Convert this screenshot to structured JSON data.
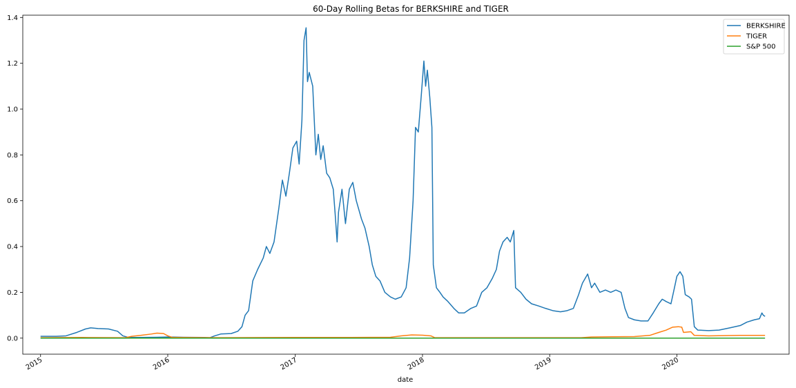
{
  "chart_data": {
    "type": "line",
    "title": "60-Day Rolling Betas for BERKSHIRE and TIGER",
    "xlabel": "date",
    "ylabel": "",
    "xlim": [
      "2014-11-11",
      "2020-11-18"
    ],
    "ylim": [
      -0.07,
      1.41
    ],
    "y_ticks": [
      0.0,
      0.2,
      0.4,
      0.6,
      0.8,
      1.0,
      1.2,
      1.4
    ],
    "y_tick_labels": [
      "0.0",
      "0.2",
      "0.4",
      "0.6",
      "0.8",
      "1.0",
      "1.2",
      "1.4"
    ],
    "x_ticks": [
      "2015-01-01",
      "2016-01-01",
      "2017-01-01",
      "2018-01-01",
      "2019-01-01",
      "2020-01-01"
    ],
    "x_tick_labels": [
      "2015",
      "2016",
      "2017",
      "2018",
      "2019",
      "2020"
    ],
    "grid": false,
    "legend_position": "top-right",
    "series": [
      {
        "name": "BERKSHIRE",
        "color": "#1f77b4",
        "points": [
          [
            "2015-01-01",
            0.008
          ],
          [
            "2015-02-15",
            0.008
          ],
          [
            "2015-03-15",
            0.01
          ],
          [
            "2015-04-15",
            0.025
          ],
          [
            "2015-05-10",
            0.04
          ],
          [
            "2015-05-25",
            0.045
          ],
          [
            "2015-06-15",
            0.042
          ],
          [
            "2015-07-15",
            0.04
          ],
          [
            "2015-08-10",
            0.03
          ],
          [
            "2015-08-25",
            0.01
          ],
          [
            "2015-09-10",
            0.003
          ],
          [
            "2015-10-15",
            0.003
          ],
          [
            "2015-12-01",
            0.004
          ],
          [
            "2016-01-01",
            0.005
          ],
          [
            "2016-02-15",
            0.004
          ],
          [
            "2016-04-15",
            0.003
          ],
          [
            "2016-05-01",
            0.002
          ],
          [
            "2016-05-15",
            0.01
          ],
          [
            "2016-06-01",
            0.018
          ],
          [
            "2016-07-01",
            0.02
          ],
          [
            "2016-07-20",
            0.03
          ],
          [
            "2016-08-01",
            0.05
          ],
          [
            "2016-08-10",
            0.1
          ],
          [
            "2016-08-20",
            0.12
          ],
          [
            "2016-09-01",
            0.25
          ],
          [
            "2016-09-15",
            0.3
          ],
          [
            "2016-10-01",
            0.35
          ],
          [
            "2016-10-10",
            0.4
          ],
          [
            "2016-10-20",
            0.37
          ],
          [
            "2016-11-01",
            0.42
          ],
          [
            "2016-11-15",
            0.57
          ],
          [
            "2016-11-25",
            0.69
          ],
          [
            "2016-12-05",
            0.62
          ],
          [
            "2016-12-15",
            0.72
          ],
          [
            "2016-12-25",
            0.83
          ],
          [
            "2017-01-05",
            0.86
          ],
          [
            "2017-01-12",
            0.76
          ],
          [
            "2017-01-20",
            0.95
          ],
          [
            "2017-01-26",
            1.3
          ],
          [
            "2017-02-01",
            1.355
          ],
          [
            "2017-02-05",
            1.12
          ],
          [
            "2017-02-10",
            1.16
          ],
          [
            "2017-02-20",
            1.1
          ],
          [
            "2017-03-01",
            0.8
          ],
          [
            "2017-03-08",
            0.89
          ],
          [
            "2017-03-15",
            0.78
          ],
          [
            "2017-03-22",
            0.84
          ],
          [
            "2017-04-01",
            0.72
          ],
          [
            "2017-04-10",
            0.7
          ],
          [
            "2017-04-20",
            0.65
          ],
          [
            "2017-04-25",
            0.55
          ],
          [
            "2017-05-01",
            0.42
          ],
          [
            "2017-05-05",
            0.55
          ],
          [
            "2017-05-15",
            0.65
          ],
          [
            "2017-05-25",
            0.5
          ],
          [
            "2017-06-05",
            0.65
          ],
          [
            "2017-06-15",
            0.68
          ],
          [
            "2017-06-25",
            0.6
          ],
          [
            "2017-07-10",
            0.52
          ],
          [
            "2017-07-20",
            0.48
          ],
          [
            "2017-08-01",
            0.4
          ],
          [
            "2017-08-10",
            0.32
          ],
          [
            "2017-08-20",
            0.27
          ],
          [
            "2017-09-01",
            0.25
          ],
          [
            "2017-09-15",
            0.2
          ],
          [
            "2017-10-01",
            0.18
          ],
          [
            "2017-10-15",
            0.17
          ],
          [
            "2017-11-01",
            0.18
          ],
          [
            "2017-11-15",
            0.22
          ],
          [
            "2017-11-25",
            0.35
          ],
          [
            "2017-12-05",
            0.6
          ],
          [
            "2017-12-12",
            0.92
          ],
          [
            "2017-12-20",
            0.9
          ],
          [
            "2017-12-28",
            1.05
          ],
          [
            "2018-01-05",
            1.21
          ],
          [
            "2018-01-10",
            1.1
          ],
          [
            "2018-01-15",
            1.17
          ],
          [
            "2018-01-22",
            1.05
          ],
          [
            "2018-01-28",
            0.92
          ],
          [
            "2018-02-01",
            0.32
          ],
          [
            "2018-02-10",
            0.22
          ],
          [
            "2018-02-20",
            0.2
          ],
          [
            "2018-03-01",
            0.18
          ],
          [
            "2018-03-15",
            0.16
          ],
          [
            "2018-04-01",
            0.13
          ],
          [
            "2018-04-15",
            0.11
          ],
          [
            "2018-05-01",
            0.11
          ],
          [
            "2018-05-20",
            0.13
          ],
          [
            "2018-06-05",
            0.14
          ],
          [
            "2018-06-20",
            0.2
          ],
          [
            "2018-07-05",
            0.22
          ],
          [
            "2018-07-20",
            0.26
          ],
          [
            "2018-08-01",
            0.3
          ],
          [
            "2018-08-10",
            0.38
          ],
          [
            "2018-08-20",
            0.42
          ],
          [
            "2018-09-01",
            0.44
          ],
          [
            "2018-09-10",
            0.42
          ],
          [
            "2018-09-20",
            0.47
          ],
          [
            "2018-09-25",
            0.22
          ],
          [
            "2018-10-10",
            0.2
          ],
          [
            "2018-10-25",
            0.17
          ],
          [
            "2018-11-10",
            0.15
          ],
          [
            "2018-12-01",
            0.14
          ],
          [
            "2018-12-20",
            0.13
          ],
          [
            "2019-01-10",
            0.12
          ],
          [
            "2019-02-01",
            0.115
          ],
          [
            "2019-02-20",
            0.12
          ],
          [
            "2019-03-10",
            0.13
          ],
          [
            "2019-03-25",
            0.19
          ],
          [
            "2019-04-05",
            0.24
          ],
          [
            "2019-04-20",
            0.28
          ],
          [
            "2019-05-01",
            0.22
          ],
          [
            "2019-05-10",
            0.24
          ],
          [
            "2019-05-25",
            0.2
          ],
          [
            "2019-06-10",
            0.21
          ],
          [
            "2019-06-25",
            0.2
          ],
          [
            "2019-07-10",
            0.21
          ],
          [
            "2019-07-25",
            0.2
          ],
          [
            "2019-08-05",
            0.13
          ],
          [
            "2019-08-15",
            0.09
          ],
          [
            "2019-09-01",
            0.08
          ],
          [
            "2019-09-20",
            0.075
          ],
          [
            "2019-10-10",
            0.075
          ],
          [
            "2019-10-25",
            0.11
          ],
          [
            "2019-11-10",
            0.15
          ],
          [
            "2019-11-20",
            0.17
          ],
          [
            "2019-12-01",
            0.16
          ],
          [
            "2019-12-15",
            0.15
          ],
          [
            "2019-12-25",
            0.22
          ],
          [
            "2020-01-01",
            0.27
          ],
          [
            "2020-01-10",
            0.29
          ],
          [
            "2020-01-18",
            0.27
          ],
          [
            "2020-01-25",
            0.19
          ],
          [
            "2020-02-05",
            0.18
          ],
          [
            "2020-02-12",
            0.17
          ],
          [
            "2020-02-20",
            0.05
          ],
          [
            "2020-03-01",
            0.035
          ],
          [
            "2020-04-01",
            0.033
          ],
          [
            "2020-05-01",
            0.035
          ],
          [
            "2020-06-01",
            0.045
          ],
          [
            "2020-07-01",
            0.055
          ],
          [
            "2020-07-20",
            0.07
          ],
          [
            "2020-08-10",
            0.08
          ],
          [
            "2020-08-25",
            0.085
          ],
          [
            "2020-09-01",
            0.11
          ],
          [
            "2020-09-05",
            0.1
          ],
          [
            "2020-09-10",
            0.095
          ]
        ]
      },
      {
        "name": "TIGER",
        "color": "#ff7f0e",
        "points": [
          [
            "2015-01-01",
            0.002
          ],
          [
            "2015-05-01",
            0.003
          ],
          [
            "2015-09-01",
            0.002
          ],
          [
            "2015-09-20",
            0.008
          ],
          [
            "2015-10-15",
            0.012
          ],
          [
            "2015-11-15",
            0.018
          ],
          [
            "2015-12-01",
            0.022
          ],
          [
            "2015-12-20",
            0.02
          ],
          [
            "2016-01-01",
            0.01
          ],
          [
            "2016-01-15",
            0.003
          ],
          [
            "2016-06-01",
            0.002
          ],
          [
            "2017-01-01",
            0.003
          ],
          [
            "2017-06-01",
            0.003
          ],
          [
            "2017-10-01",
            0.004
          ],
          [
            "2017-11-01",
            0.01
          ],
          [
            "2017-12-01",
            0.014
          ],
          [
            "2018-01-01",
            0.013
          ],
          [
            "2018-01-25",
            0.01
          ],
          [
            "2018-02-05",
            0.002
          ],
          [
            "2018-07-01",
            0.002
          ],
          [
            "2019-01-01",
            0.002
          ],
          [
            "2019-04-01",
            0.002
          ],
          [
            "2019-05-01",
            0.005
          ],
          [
            "2019-07-01",
            0.006
          ],
          [
            "2019-09-01",
            0.007
          ],
          [
            "2019-10-15",
            0.012
          ],
          [
            "2019-11-10",
            0.025
          ],
          [
            "2019-12-01",
            0.035
          ],
          [
            "2019-12-20",
            0.048
          ],
          [
            "2020-01-05",
            0.05
          ],
          [
            "2020-01-15",
            0.048
          ],
          [
            "2020-01-20",
            0.025
          ],
          [
            "2020-02-10",
            0.028
          ],
          [
            "2020-02-20",
            0.012
          ],
          [
            "2020-04-01",
            0.01
          ],
          [
            "2020-07-01",
            0.012
          ],
          [
            "2020-09-10",
            0.012
          ]
        ]
      },
      {
        "name": "S&P 500",
        "color": "#2ca02c",
        "points": [
          [
            "2015-01-01",
            0.0
          ],
          [
            "2020-09-10",
            0.0
          ]
        ]
      }
    ]
  }
}
